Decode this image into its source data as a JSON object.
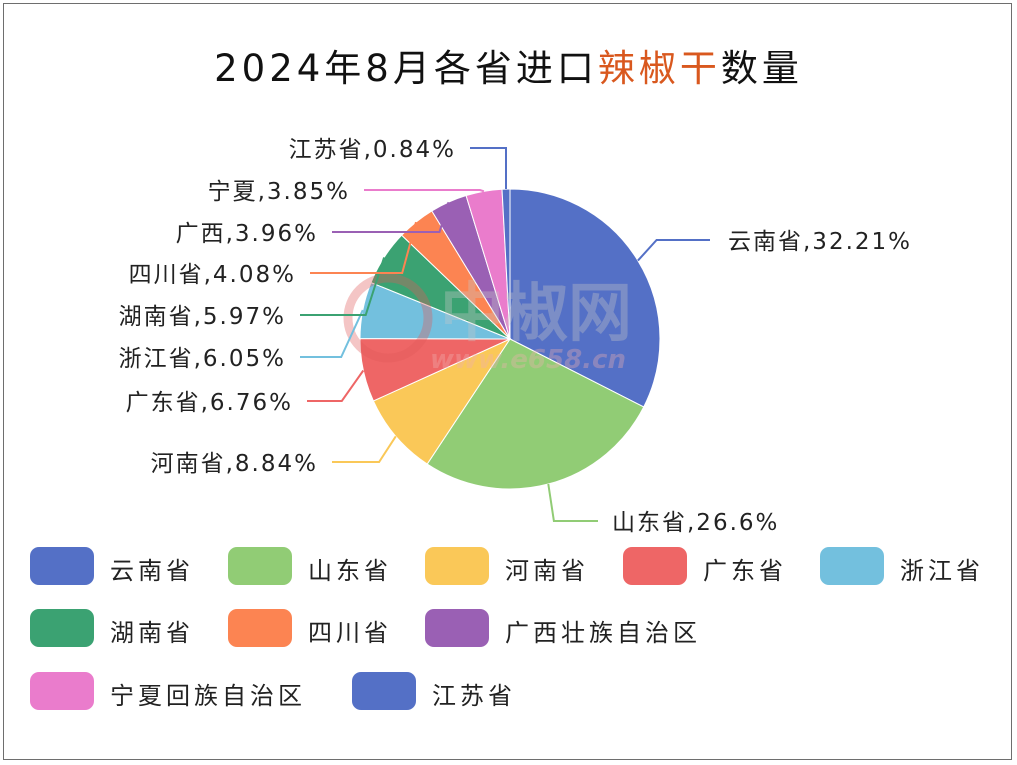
{
  "chart_data": {
    "type": "pie",
    "title_parts": [
      {
        "text": "2024年8月各省进口",
        "highlight": false
      },
      {
        "text": "辣椒干",
        "highlight": true
      },
      {
        "text": "数量",
        "highlight": false
      }
    ],
    "highlight_color": "#d9581e",
    "slices": [
      {
        "name": "云南省",
        "legend": "云南省",
        "value": 32.21,
        "label": "云南省,32.21%",
        "color": "#5470c6"
      },
      {
        "name": "山东省",
        "legend": "山东省",
        "value": 26.6,
        "label": "山东省,26.6%",
        "color": "#91cc75"
      },
      {
        "name": "河南省",
        "legend": "河南省",
        "value": 8.84,
        "label": "河南省,8.84%",
        "color": "#fac858"
      },
      {
        "name": "广东省",
        "legend": "广东省",
        "value": 6.76,
        "label": "广东省,6.76%",
        "color": "#ee6666"
      },
      {
        "name": "浙江省",
        "legend": "浙江省",
        "value": 6.05,
        "label": "浙江省,6.05%",
        "color": "#73c0de"
      },
      {
        "name": "湖南省",
        "legend": "湖南省",
        "value": 5.97,
        "label": "湖南省,5.97%",
        "color": "#3ba272"
      },
      {
        "name": "四川省",
        "legend": "四川省",
        "value": 4.08,
        "label": "四川省,4.08%",
        "color": "#fc8452"
      },
      {
        "name": "广西",
        "legend": "广西壮族自治区",
        "value": 3.96,
        "label": "广西,3.96%",
        "color": "#9a60b4"
      },
      {
        "name": "宁夏",
        "legend": "宁夏回族自治区",
        "value": 3.85,
        "label": "宁夏,3.85%",
        "color": "#ea7ccc"
      },
      {
        "name": "江苏省",
        "legend": "江苏省",
        "value": 0.84,
        "label": "江苏省,0.84%",
        "color": "#5470c6"
      }
    ],
    "legend_position": "bottom"
  },
  "watermark": {
    "brand": "中椒网",
    "site": "www.e658.cn"
  }
}
